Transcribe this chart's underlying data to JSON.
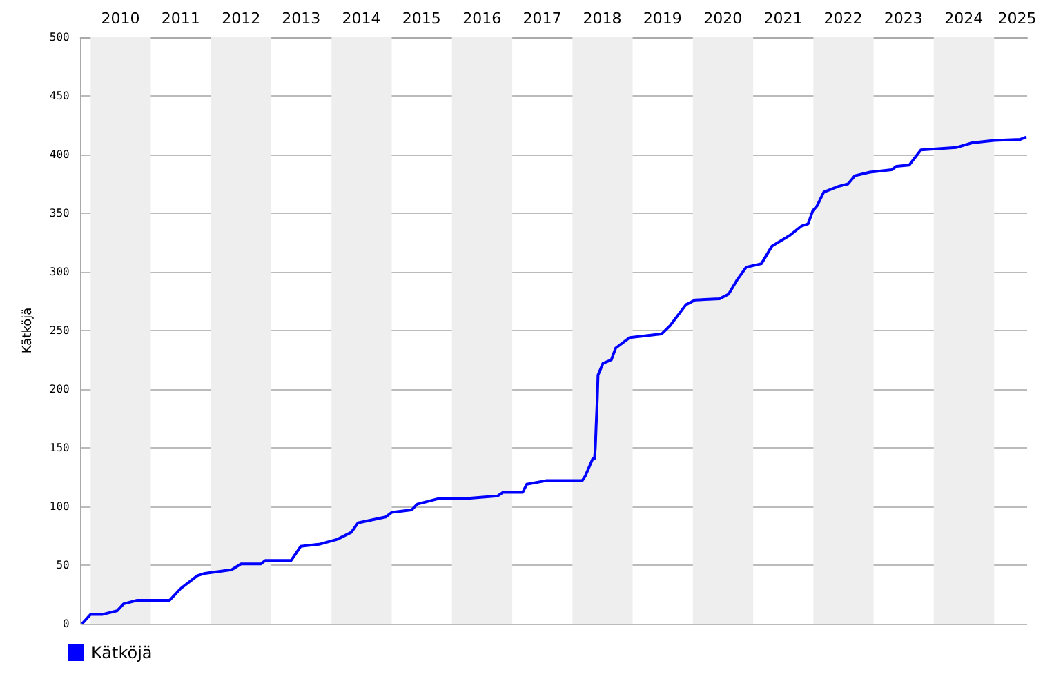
{
  "chart_data": {
    "type": "line",
    "ylabel": "Kätköjä",
    "xlim": [
      "2009-11-01",
      "2025-07-20"
    ],
    "xticks": [
      {
        "value": "2010-07-01",
        "label": "2010"
      },
      {
        "value": "2011-07-01",
        "label": "2011"
      },
      {
        "value": "2012-07-01",
        "label": "2012"
      },
      {
        "value": "2013-07-01",
        "label": "2013"
      },
      {
        "value": "2014-07-01",
        "label": "2014"
      },
      {
        "value": "2015-07-01",
        "label": "2015"
      },
      {
        "value": "2016-07-01",
        "label": "2016"
      },
      {
        "value": "2017-07-01",
        "label": "2017"
      },
      {
        "value": "2018-07-01",
        "label": "2018"
      },
      {
        "value": "2019-07-01",
        "label": "2019"
      },
      {
        "value": "2020-07-01",
        "label": "2020"
      },
      {
        "value": "2021-07-01",
        "label": "2021"
      },
      {
        "value": "2022-07-01",
        "label": "2022"
      },
      {
        "value": "2023-07-01",
        "label": "2023"
      },
      {
        "value": "2024-07-01",
        "label": "2024"
      },
      {
        "value": "2025-05-20",
        "label": "2025"
      }
    ],
    "ylim": [
      0,
      500
    ],
    "yticks": [
      0,
      50,
      100,
      150,
      200,
      250,
      300,
      350,
      400,
      450,
      500
    ],
    "grid": "y",
    "legend": "bottom left",
    "marker": "none",
    "line_style": "solid",
    "bands": [
      {
        "axis": "x",
        "from": "2010-01-01",
        "to": "2011-01-01",
        "color": "#eeeeee"
      },
      {
        "axis": "x",
        "from": "2012-01-01",
        "to": "2013-01-01",
        "color": "#eeeeee"
      },
      {
        "axis": "x",
        "from": "2014-01-01",
        "to": "2015-01-01",
        "color": "#eeeeee"
      },
      {
        "axis": "x",
        "from": "2016-01-01",
        "to": "2017-01-01",
        "color": "#eeeeee"
      },
      {
        "axis": "x",
        "from": "2018-01-01",
        "to": "2019-01-01",
        "color": "#eeeeee"
      },
      {
        "axis": "x",
        "from": "2020-01-01",
        "to": "2021-01-01",
        "color": "#eeeeee"
      },
      {
        "axis": "x",
        "from": "2022-01-01",
        "to": "2023-01-01",
        "color": "#eeeeee"
      },
      {
        "axis": "x",
        "from": "2024-01-01",
        "to": "2025-01-01",
        "color": "#eeeeee"
      }
    ],
    "x": [
      "2009-11-10",
      "2010-01-01",
      "2010-03-15",
      "2010-06-10",
      "2010-07-20",
      "2010-10-10",
      "2011-04-25",
      "2011-07-01",
      "2011-10-10",
      "2011-11-25",
      "2012-05-05",
      "2012-07-01",
      "2012-10-30",
      "2012-11-25",
      "2013-05-01",
      "2013-06-28",
      "2013-10-25",
      "2014-02-05",
      "2014-05-01",
      "2014-06-10",
      "2014-11-25",
      "2015-01-01",
      "2015-05-01",
      "2015-06-05",
      "2015-10-20",
      "2016-04-20",
      "2016-10-05",
      "2016-11-05",
      "2017-03-05",
      "2017-03-30",
      "2017-07-25",
      "2018-03-01",
      "2018-03-20",
      "2018-05-05",
      "2018-05-15",
      "2018-05-20",
      "2018-05-25",
      "2018-06-01",
      "2018-06-05",
      "2018-07-05",
      "2018-08-25",
      "2018-09-20",
      "2018-12-15",
      "2019-06-25",
      "2019-08-15",
      "2019-11-20",
      "2020-01-15",
      "2020-06-10",
      "2020-08-05",
      "2020-09-25",
      "2020-11-20",
      "2021-02-20",
      "2021-04-25",
      "2021-08-10",
      "2021-10-20",
      "2021-11-30",
      "2021-12-28",
      "2022-01-22",
      "2022-03-05",
      "2022-06-05",
      "2022-07-30",
      "2022-09-10",
      "2022-12-10",
      "2023-04-20",
      "2023-05-20",
      "2023-08-05",
      "2023-10-15",
      "2024-05-15",
      "2024-08-20",
      "2025-01-01",
      "2025-06-10",
      "2025-07-15"
    ],
    "series": [
      {
        "name": "Kätköjä",
        "color": "#0000ff",
        "values": [
          0,
          8,
          8,
          11,
          17,
          20,
          20,
          30,
          41,
          43,
          46,
          51,
          51,
          54,
          54,
          66,
          68,
          72,
          78,
          86,
          91,
          95,
          97,
          102,
          107,
          107,
          109,
          112,
          112,
          119,
          122,
          122,
          126,
          141,
          141,
          151,
          170,
          193,
          212,
          222,
          225,
          235,
          244,
          247,
          254,
          272,
          276,
          277,
          281,
          293,
          304,
          307,
          322,
          331,
          339,
          341,
          352,
          356,
          368,
          373,
          375,
          382,
          385,
          387,
          390,
          391,
          404,
          406,
          410,
          412,
          413,
          415
        ]
      }
    ]
  }
}
